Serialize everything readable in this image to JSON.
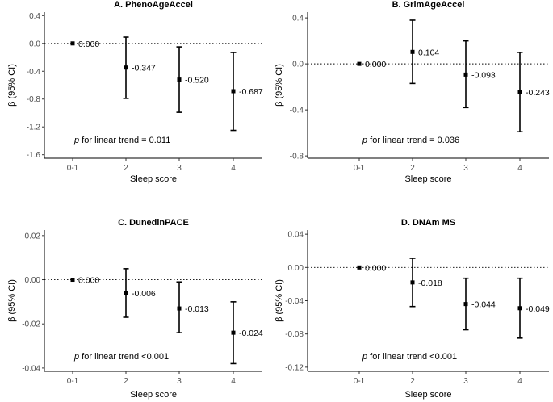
{
  "chart_data": [
    {
      "type": "scatter",
      "title": "A. PhenoAgeAccel",
      "xlabel": "Sleep score",
      "ylabel": "β (95% CI)",
      "categories": [
        "0-1",
        "2",
        "3",
        "4"
      ],
      "estimates": [
        0.0,
        -0.347,
        -0.52,
        -0.687
      ],
      "ci_lower": [
        0.0,
        -0.79,
        -0.99,
        -1.25
      ],
      "ci_upper": [
        0.0,
        0.09,
        -0.05,
        -0.13
      ],
      "point_labels": [
        "0.000",
        "-0.347",
        "-0.520",
        "-0.687"
      ],
      "yticks": [
        "0.4",
        "0.0",
        "-0.4",
        "-0.8",
        "-1.2",
        "-1.6"
      ],
      "ylim": [
        -1.65,
        0.45
      ],
      "annotation_p": "p",
      "annotation_rest": " for linear trend = 0.011",
      "reference_line": 0,
      "grid": false
    },
    {
      "type": "scatter",
      "title": "B. GrimAgeAccel",
      "xlabel": "Sleep score",
      "ylabel": "β (95% CI)",
      "categories": [
        "0-1",
        "2",
        "3",
        "4"
      ],
      "estimates": [
        0.0,
        0.104,
        -0.093,
        -0.243
      ],
      "ci_lower": [
        0.0,
        -0.17,
        -0.38,
        -0.59
      ],
      "ci_upper": [
        0.0,
        0.38,
        0.2,
        0.1
      ],
      "point_labels": [
        "0.000",
        "0.104",
        "-0.093",
        "-0.243"
      ],
      "yticks": [
        "0.4",
        "0.0",
        "-0.4",
        "-0.8"
      ],
      "ylim": [
        -0.82,
        0.45
      ],
      "annotation_p": "p",
      "annotation_rest": " for linear trend = 0.036",
      "reference_line": 0,
      "grid": false
    },
    {
      "type": "scatter",
      "title": "C. DunedinPACE",
      "xlabel": "Sleep score",
      "ylabel": "β (95% CI)",
      "categories": [
        "0-1",
        "2",
        "3",
        "4"
      ],
      "estimates": [
        0.0,
        -0.006,
        -0.013,
        -0.024
      ],
      "ci_lower": [
        0.0,
        -0.017,
        -0.024,
        -0.038
      ],
      "ci_upper": [
        0.0,
        0.005,
        -0.001,
        -0.01
      ],
      "point_labels": [
        "0.000",
        "-0.006",
        "-0.013",
        "-0.024"
      ],
      "yticks": [
        "0.02",
        "0.00",
        "-0.02",
        "-0.04"
      ],
      "ylim": [
        -0.0415,
        0.0225
      ],
      "annotation_p": "p",
      "annotation_rest": " for linear trend <0.001",
      "reference_line": 0,
      "grid": false
    },
    {
      "type": "scatter",
      "title": "D. DNAm MS",
      "xlabel": "Sleep score",
      "ylabel": "β (95% CI)",
      "categories": [
        "0-1",
        "2",
        "3",
        "4"
      ],
      "estimates": [
        0.0,
        -0.018,
        -0.044,
        -0.049
      ],
      "ci_lower": [
        0.0,
        -0.047,
        -0.075,
        -0.085
      ],
      "ci_upper": [
        0.0,
        0.011,
        -0.013,
        -0.013
      ],
      "point_labels": [
        "0.000",
        "-0.018",
        "-0.044",
        "-0.049"
      ],
      "yticks": [
        "0.04",
        "0.00",
        "-0.04",
        "-0.08",
        "-0.12"
      ],
      "ylim": [
        -0.125,
        0.045
      ],
      "annotation_p": "p",
      "annotation_rest": " for linear trend <0.001",
      "reference_line": 0,
      "grid": false
    }
  ]
}
